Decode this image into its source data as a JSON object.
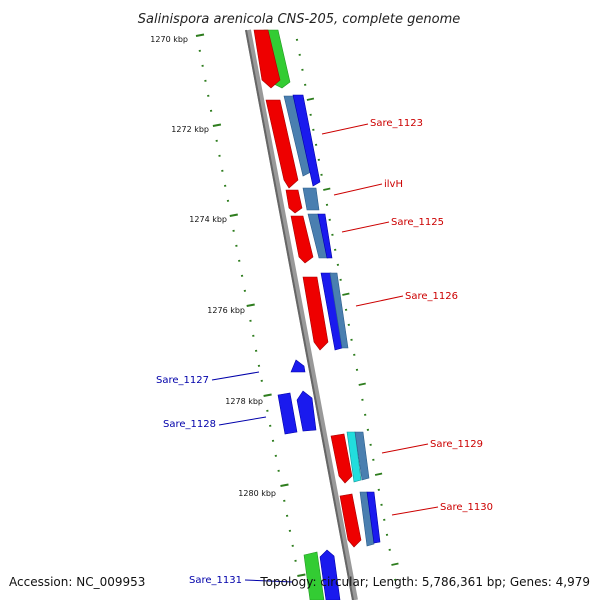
{
  "title": "Salinispora arenicola CNS-205, complete genome",
  "footer": {
    "accession": "Accession: NC_009953",
    "topology": "Topology: circular; Length: 5,786,361 bp; Genes: 4,979"
  },
  "ruler_labels": [
    "1270 kbp",
    "1272 kbp",
    "1274 kbp",
    "1276 kbp",
    "1278 kbp",
    "1280 kbp"
  ],
  "genes": [
    {
      "id": "sare-1123",
      "label": "Sare_1123",
      "strand": "forward",
      "label_color": "#cc0000"
    },
    {
      "id": "ilvh",
      "label": "ilvH",
      "strand": "forward",
      "label_color": "#cc0000"
    },
    {
      "id": "sare-1125",
      "label": "Sare_1125",
      "strand": "forward",
      "label_color": "#cc0000"
    },
    {
      "id": "sare-1126",
      "label": "Sare_1126",
      "strand": "forward",
      "label_color": "#cc0000"
    },
    {
      "id": "sare-1127",
      "label": "Sare_1127",
      "strand": "reverse",
      "label_color": "#0000aa"
    },
    {
      "id": "sare-1128",
      "label": "Sare_1128",
      "strand": "reverse",
      "label_color": "#0000aa"
    },
    {
      "id": "sare-1129",
      "label": "Sare_1129",
      "strand": "forward",
      "label_color": "#cc0000"
    },
    {
      "id": "sare-1130",
      "label": "Sare_1130",
      "strand": "forward",
      "label_color": "#cc0000"
    },
    {
      "id": "sare-1131",
      "label": "Sare_1131",
      "strand": "reverse",
      "label_color": "#0000aa"
    }
  ],
  "colors": {
    "backbone": "#777777",
    "ruler": "#2e7d1e",
    "cds_forward": "#ee0000",
    "cds_reverse": "#1a1aee",
    "steelblue_track": "#4a7fb0",
    "cyan_track": "#22dddd",
    "green_track": "#33cc33"
  }
}
